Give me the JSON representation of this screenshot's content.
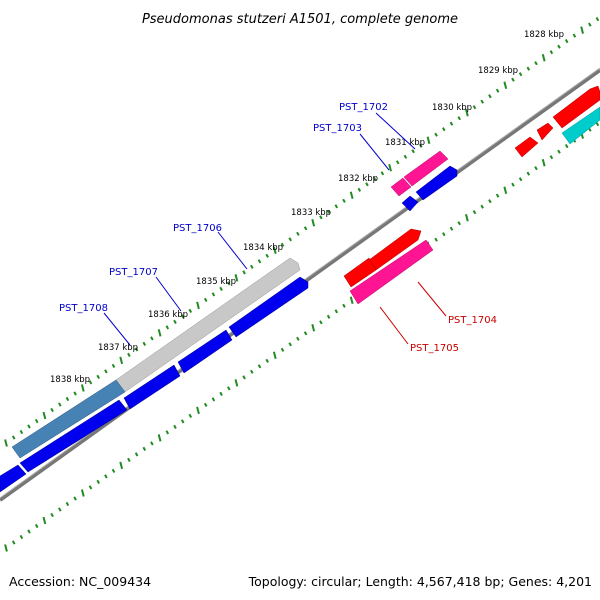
{
  "title": "Pseudomonas stutzeri A1501, complete genome",
  "footer": {
    "accession": "Accession: NC_009434",
    "summary": "Topology: circular; Length: 4,567,418 bp; Genes: 4,201"
  },
  "kbp_labels": [
    "1828 kbp",
    "1829 kbp",
    "1830 kbp",
    "1831 kbp",
    "1832 kbp",
    "1833 kbp",
    "1834 kbp",
    "1835 kbp",
    "1836 kbp",
    "1837 kbp",
    "1838 kbp"
  ],
  "gene_labels": {
    "pst1702": "PST_1702",
    "pst1703": "PST_1703",
    "pst1704": "PST_1704",
    "pst1705": "PST_1705",
    "pst1706": "PST_1706",
    "pst1707": "PST_1707",
    "pst1708": "PST_1708"
  },
  "colors": {
    "backbone": "#888888",
    "ticks": "#228b22",
    "forward_gene": "#ff1493",
    "forward_red": "#ff0000",
    "reverse_gene": "#0000ee",
    "grey_gene": "#c0c0c0",
    "steelblue_gene": "#4682b4",
    "cyan_gene": "#00cccc",
    "label_blue": "#0000cc",
    "label_red": "#cc0000"
  }
}
